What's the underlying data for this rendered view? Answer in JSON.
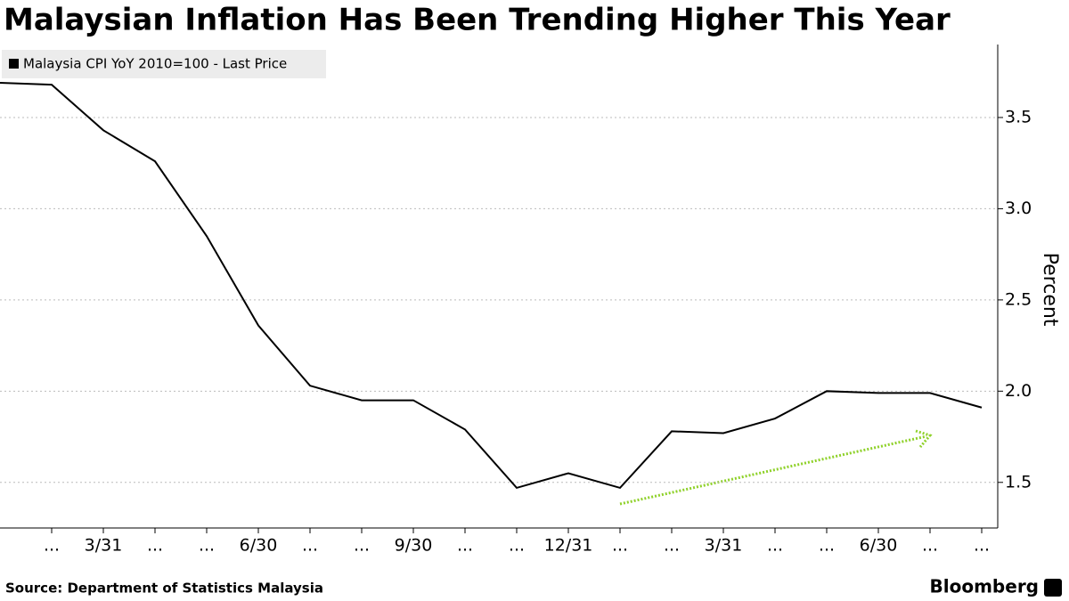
{
  "chart_data": {
    "type": "line",
    "title": "Malaysian Inflation Has Been Trending Higher This Year",
    "categories": [
      null,
      "...",
      "3/31",
      "...",
      "...",
      "6/30",
      "...",
      "...",
      "9/30",
      "...",
      "...",
      "12/31",
      "...",
      "...",
      "3/31",
      "...",
      "...",
      "6/30",
      "...",
      "..."
    ],
    "series": [
      {
        "name": "Malaysia CPI YoY 2010=100 - Last Price",
        "color": "#000000",
        "values": [
          3.69,
          3.68,
          3.43,
          3.26,
          2.85,
          2.36,
          2.03,
          1.95,
          1.95,
          1.79,
          1.47,
          1.55,
          1.47,
          1.78,
          1.77,
          1.85,
          2.0,
          1.99,
          1.99,
          1.91
        ]
      }
    ],
    "y_label": "Percent",
    "ylim": [
      1.25,
      3.9
    ],
    "yticks": [
      {
        "value": 1.5,
        "label": "1.5"
      },
      {
        "value": 2,
        "label": "2.0"
      },
      {
        "value": 2.5,
        "label": "2.5"
      },
      {
        "value": 3,
        "label": "3.0"
      },
      {
        "value": 3.5,
        "label": "3.5"
      }
    ],
    "grid": true,
    "legend": "top-left",
    "source": "Source: Department of Statistics Malaysia",
    "brand": "Bloomberg"
  }
}
